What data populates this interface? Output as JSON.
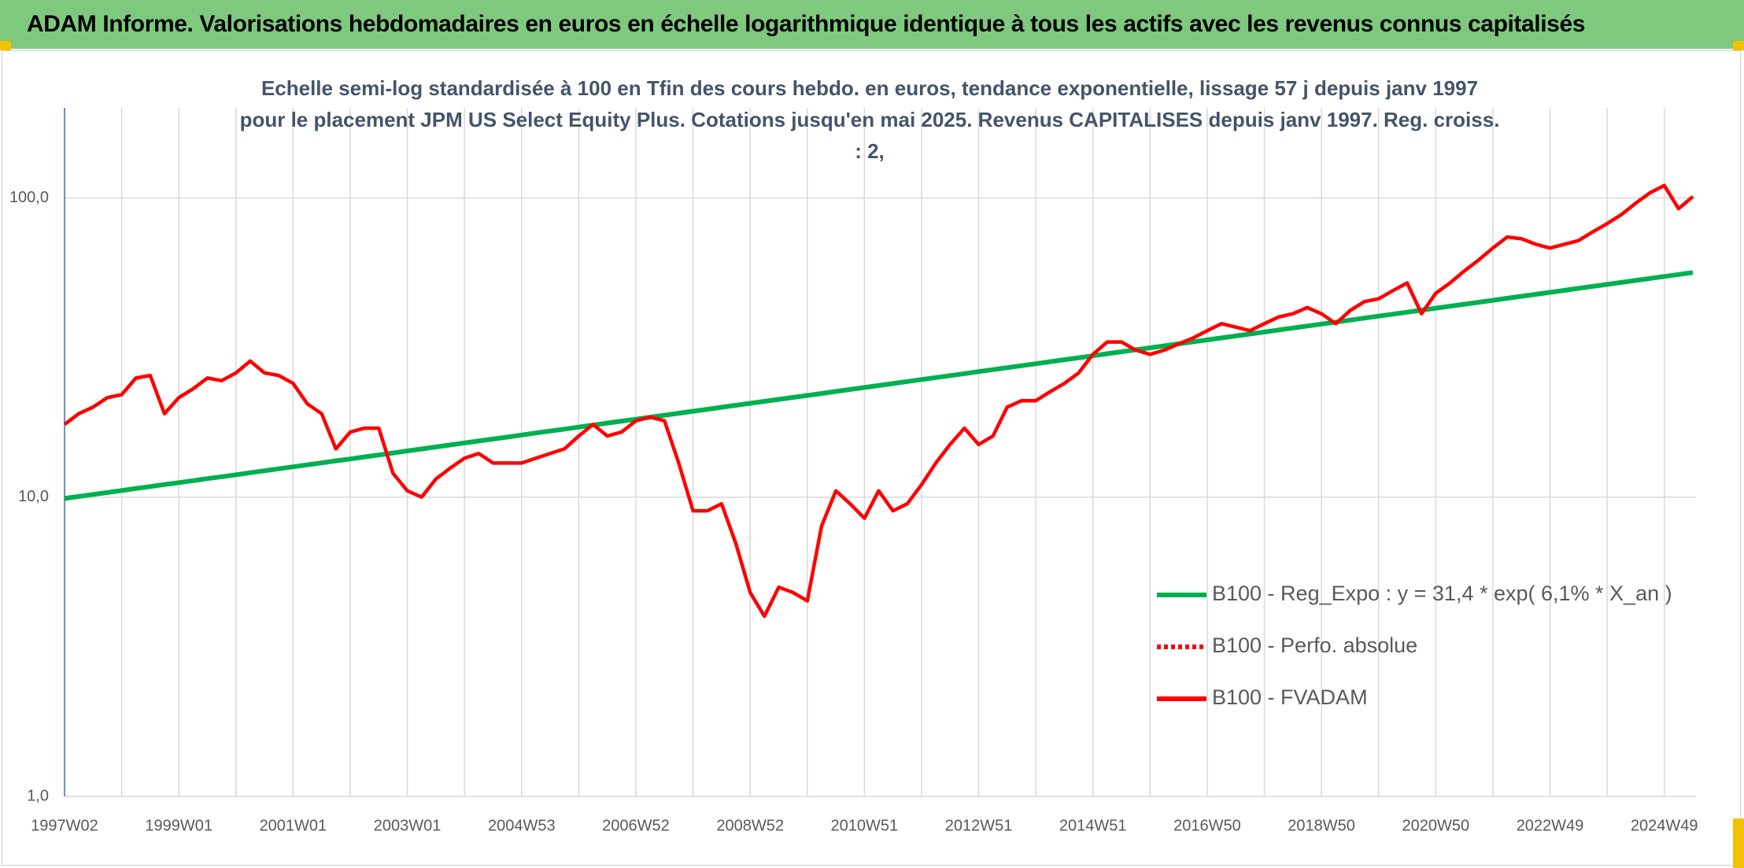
{
  "chart_data": {
    "type": "line",
    "title": "ADAM Informe. Valorisations hebdomadaires en euros en échelle logarithmique identique à tous les actifs avec les revenus connus capitalisés",
    "subtitle": "Echelle semi-log standardisée à 100 en Tfin des cours hebdo. en euros, tendance exponentielle, lissage 57 j depuis janv 1997 pour le placement JPM US Select Equity Plus. Cotations jusqu'en mai 2025. Revenus CAPITALISES depuis janv 1997. Reg. croiss. : 2,",
    "ylog": true,
    "ylim": [
      1,
      200
    ],
    "yticks": [
      {
        "value": 1,
        "label": "1,0"
      },
      {
        "value": 10,
        "label": "10,0"
      },
      {
        "value": 100,
        "label": "100,0"
      }
    ],
    "grid": true,
    "categories": [
      "1997W02",
      null,
      null,
      null,
      null,
      null,
      null,
      null,
      "1999W01",
      null,
      null,
      null,
      null,
      null,
      null,
      null,
      "2001W01",
      null,
      null,
      null,
      null,
      null,
      null,
      null,
      "2003W01",
      null,
      null,
      null,
      null,
      null,
      null,
      null,
      "2004W53",
      null,
      null,
      null,
      null,
      null,
      null,
      null,
      "2006W52",
      null,
      null,
      null,
      null,
      null,
      null,
      null,
      "2008W52",
      null,
      null,
      null,
      null,
      null,
      null,
      null,
      "2010W51",
      null,
      null,
      null,
      null,
      null,
      null,
      null,
      "2012W51",
      null,
      null,
      null,
      null,
      null,
      null,
      null,
      "2014W51",
      null,
      null,
      null,
      null,
      null,
      null,
      null,
      "2016W50",
      null,
      null,
      null,
      null,
      null,
      null,
      null,
      "2018W50",
      null,
      null,
      null,
      null,
      null,
      null,
      null,
      "2020W50",
      null,
      null,
      null,
      null,
      null,
      null,
      null,
      "2022W49",
      null,
      null,
      null,
      null,
      null,
      null,
      null,
      "2024W49",
      null,
      null
    ],
    "series": [
      {
        "name": "B100 - Reg_Expo : y = 31,4 * exp( 6,1% *  X_an )",
        "color": "#00b050",
        "style": "solid",
        "values": [
          9.9,
          10.05,
          10.21,
          10.36,
          10.52,
          10.69,
          10.85,
          11.02,
          11.18,
          11.35,
          11.53,
          11.7,
          11.88,
          12.07,
          12.25,
          12.44,
          12.63,
          12.82,
          13.02,
          13.22,
          13.42,
          13.63,
          13.84,
          14.05,
          14.27,
          14.49,
          14.71,
          14.94,
          15.17,
          15.4,
          15.64,
          15.88,
          16.13,
          16.38,
          16.63,
          16.88,
          17.14,
          17.41,
          17.68,
          17.95,
          18.22,
          18.5,
          18.78,
          19.07,
          19.37,
          19.66,
          19.97,
          20.27,
          20.58,
          20.9,
          21.22,
          21.54,
          21.87,
          22.21,
          22.55,
          22.9,
          23.25,
          23.61,
          23.97,
          24.34,
          24.71,
          25.09,
          25.48,
          25.87,
          26.27,
          26.67,
          27.08,
          27.5,
          27.92,
          28.35,
          28.79,
          29.23,
          29.68,
          30.14,
          30.6,
          31.07,
          31.55,
          32.03,
          32.53,
          33.03,
          33.53,
          34.05,
          34.57,
          35.1,
          35.64,
          36.19,
          36.75,
          37.31,
          37.88,
          38.46,
          39.05,
          39.65,
          40.26,
          40.88,
          41.51,
          42.15,
          42.8,
          43.46,
          44.13,
          44.8,
          45.49,
          46.19,
          46.9,
          47.62,
          48.35,
          49.09,
          49.85,
          50.61,
          51.39,
          52.18,
          52.99,
          53.8,
          54.63,
          55.47,
          56.32
        ]
      },
      {
        "name": "B100 - Perfo. absolue",
        "color": "#ff0000",
        "style": "dotted",
        "values": [
          null,
          null,
          null,
          null,
          null,
          null,
          null,
          null,
          null,
          null,
          null,
          null,
          null,
          null,
          null,
          null,
          null,
          null,
          null,
          null,
          null,
          null,
          null,
          null,
          null,
          null,
          null,
          null,
          null,
          null,
          null,
          null,
          null,
          null,
          null,
          null,
          null,
          null,
          null,
          null,
          null,
          null,
          null,
          null,
          null,
          null,
          null,
          null,
          null,
          null,
          null,
          null,
          null,
          null,
          null,
          null,
          null,
          null,
          null,
          null,
          null,
          null,
          null,
          null,
          null,
          null,
          null,
          null,
          null,
          null,
          null,
          null,
          null,
          null,
          null,
          null,
          null,
          null,
          null,
          null,
          null,
          null,
          null,
          null,
          null,
          null,
          null,
          null,
          null,
          null,
          null,
          null,
          null,
          null,
          null,
          null,
          null,
          null,
          null,
          null,
          null,
          null,
          null,
          null,
          null,
          null,
          null,
          null,
          null,
          null,
          null,
          null,
          null,
          null,
          null
        ]
      },
      {
        "name": "B100 - FVADAM",
        "color": "#ff0000",
        "style": "solid",
        "values": [
          17.5,
          19,
          20,
          21.5,
          22,
          25,
          25.5,
          19,
          21.5,
          23,
          25,
          24.5,
          26,
          28.5,
          26,
          25.5,
          24,
          20.5,
          19,
          14.5,
          16.5,
          17,
          17,
          12,
          10.5,
          10,
          11.5,
          12.5,
          13.5,
          14,
          13,
          13,
          13,
          13.5,
          14,
          14.5,
          16,
          17.5,
          16,
          16.5,
          18,
          18.5,
          18,
          13,
          9,
          9,
          9.5,
          7,
          4.8,
          4,
          5,
          4.8,
          4.5,
          8,
          10.5,
          9.5,
          8.5,
          10.5,
          9,
          9.5,
          11,
          13,
          15,
          17,
          15,
          16,
          20,
          21,
          21,
          22.5,
          24,
          26,
          30,
          33,
          33,
          31,
          30,
          31,
          32.5,
          34,
          36,
          38,
          37,
          36,
          38,
          40,
          41,
          43,
          41,
          38,
          42,
          45,
          46,
          49,
          52,
          41,
          48,
          52,
          57,
          62,
          68,
          74,
          73,
          70,
          68,
          70,
          72,
          77,
          82,
          88,
          96,
          104,
          110,
          92,
          101
        ]
      }
    ]
  }
}
